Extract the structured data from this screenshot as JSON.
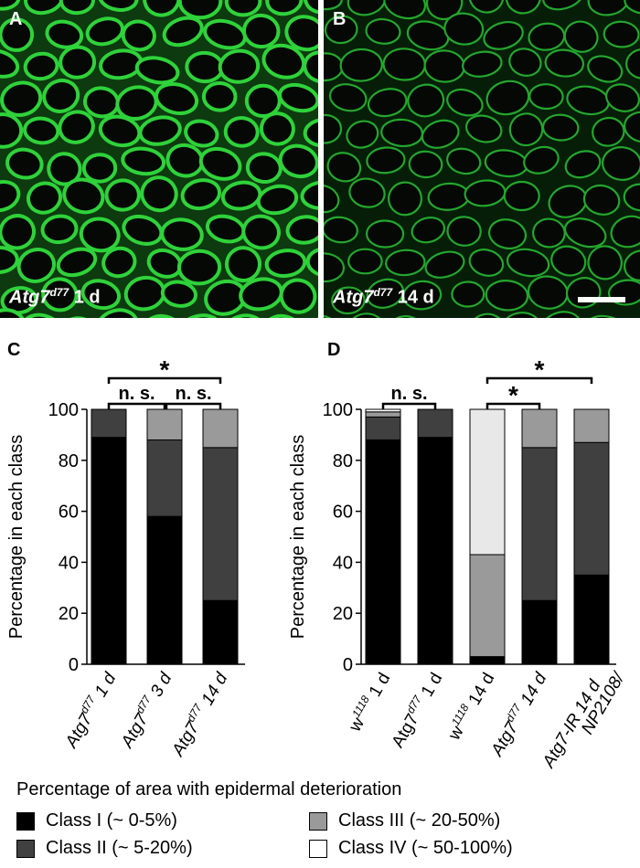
{
  "panels": {
    "a": {
      "letter": "A",
      "gene": "Atg7",
      "allele": "d77",
      "time": " 1 d"
    },
    "b": {
      "letter": "B",
      "gene": "Atg7",
      "allele": "d77",
      "time": " 14 d"
    },
    "c": {
      "letter": "C"
    },
    "d": {
      "letter": "D"
    }
  },
  "legend": {
    "title": "Percentage of area with epidermal deterioration",
    "items": [
      {
        "label": "Class I (~ 0-5%)",
        "color": "#000000"
      },
      {
        "label": "Class II (~ 5-20%)",
        "color": "#404040"
      },
      {
        "label": "Class III (~ 20-50%)",
        "color": "#9a9a9a"
      },
      {
        "label": "Class IV (~ 50-100%)",
        "color": "#ffffff"
      }
    ]
  },
  "chart_data": [
    {
      "type": "bar",
      "stacked": true,
      "panel": "C",
      "categories": [
        {
          "base": "Atg7",
          "sup": "d77",
          "rest": " 1 d",
          "italic_base": true
        },
        {
          "base": "Atg7",
          "sup": "d77",
          "rest": " 3 d",
          "italic_base": true
        },
        {
          "base": "Atg7",
          "sup": "d77",
          "rest": " 14 d",
          "italic_base": true
        }
      ],
      "series": [
        {
          "name": "Class I (~ 0-5%)",
          "values": [
            89,
            58,
            25
          ]
        },
        {
          "name": "Class II (~ 5-20%)",
          "values": [
            11,
            30,
            60
          ]
        },
        {
          "name": "Class III (~ 20-50%)",
          "values": [
            0,
            12,
            15
          ]
        },
        {
          "name": "Class IV (~ 50-100%)",
          "values": [
            0,
            0,
            0
          ]
        }
      ],
      "ylabel": "Percentage in each class",
      "ylim": [
        0,
        100
      ],
      "yticks": [
        0,
        20,
        40,
        60,
        80,
        100
      ],
      "annotations": [
        {
          "from": 0,
          "to": 2,
          "text": "*",
          "level": 3
        },
        {
          "from": 0,
          "to": 1,
          "text": "n. s.",
          "level": 1
        },
        {
          "from": 1,
          "to": 2,
          "text": "n. s.",
          "level": 1
        }
      ]
    },
    {
      "type": "bar",
      "stacked": true,
      "panel": "D",
      "categories": [
        {
          "base": "w",
          "sup": "1118",
          "rest": " 1 d",
          "italic_base": false
        },
        {
          "base": "Atg7",
          "sup": "d77",
          "rest": " 1 d",
          "italic_base": false
        },
        {
          "base": "w",
          "sup": "1118",
          "rest": " 14 d",
          "italic_base": false
        },
        {
          "base": "Atg7",
          "sup": "d77",
          "rest": " 14 d",
          "italic_base": true
        },
        {
          "line1": "NP2108/",
          "line2": "Atg7-IR 14 d",
          "italic_base": true
        }
      ],
      "series": [
        {
          "name": "Class I (~ 0-5%)",
          "values": [
            88,
            89,
            3,
            25,
            35
          ]
        },
        {
          "name": "Class II (~ 5-20%)",
          "values": [
            9,
            11,
            0,
            60,
            52
          ]
        },
        {
          "name": "Class III (~ 20-50%)",
          "values": [
            2,
            0,
            40,
            15,
            13
          ]
        },
        {
          "name": "Class IV (~ 50-100%)",
          "values": [
            1,
            0,
            57,
            0,
            0
          ]
        }
      ],
      "series_colors_override": {
        "2": {
          "3": "#e8e8e8"
        }
      },
      "ylabel": "Percentage in each class",
      "ylim": [
        0,
        100
      ],
      "yticks": [
        0,
        20,
        40,
        60,
        80,
        100
      ],
      "annotations": [
        {
          "from": 0,
          "to": 1,
          "text": "n. s.",
          "level": 1
        },
        {
          "from": 2,
          "to": 3,
          "text": "*",
          "level": 1
        },
        {
          "from": 2,
          "to": 4,
          "text": "*",
          "level": 3
        }
      ]
    }
  ]
}
